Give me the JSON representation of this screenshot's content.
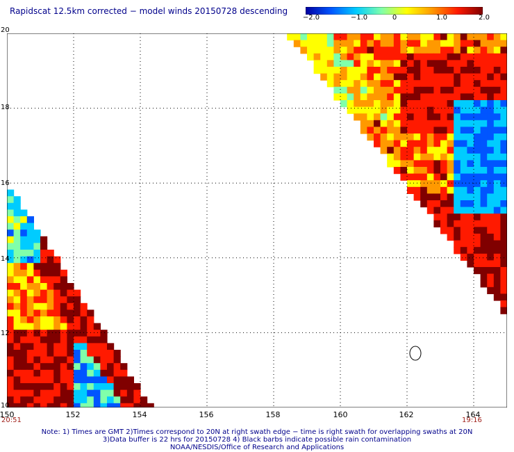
{
  "title": "Rapidscat 12.5km corrected − model winds 20150728 descending",
  "colorbar": {
    "ticks": [
      "−2.0",
      "−1.0",
      "0",
      "1.0",
      "2.0"
    ],
    "range": [
      -2.0,
      2.0
    ],
    "colors": [
      "#0000a0",
      "#0055ff",
      "#00ccff",
      "#80ffaa",
      "#ffff00",
      "#ff9900",
      "#ff1a00",
      "#800000"
    ]
  },
  "map": {
    "lon_range": [
      150,
      165
    ],
    "lat_range": [
      10,
      20
    ],
    "lon_ticks": [
      "150",
      "152",
      "154",
      "156",
      "158",
      "160",
      "162",
      "164"
    ],
    "lat_ticks": [
      "20",
      "18",
      "16",
      "14",
      "12",
      "10"
    ],
    "grid": "dotted",
    "background": "#ffffff",
    "rain_contour_center": [
      162.3,
      11.4
    ]
  },
  "times": {
    "left": "20:51",
    "right": "19:16"
  },
  "notes": {
    "line1": "Note: 1) Times are GMT 2)Times correspond to 20N at right swath edge − time is right swath for overlapping swaths at 20N",
    "line2": "3)Data buffer is 22 hrs for 20150728 4) Black barbs indicate possible rain contamination",
    "line3": "NOAA/NESDIS/Office of Research and Applications"
  }
}
